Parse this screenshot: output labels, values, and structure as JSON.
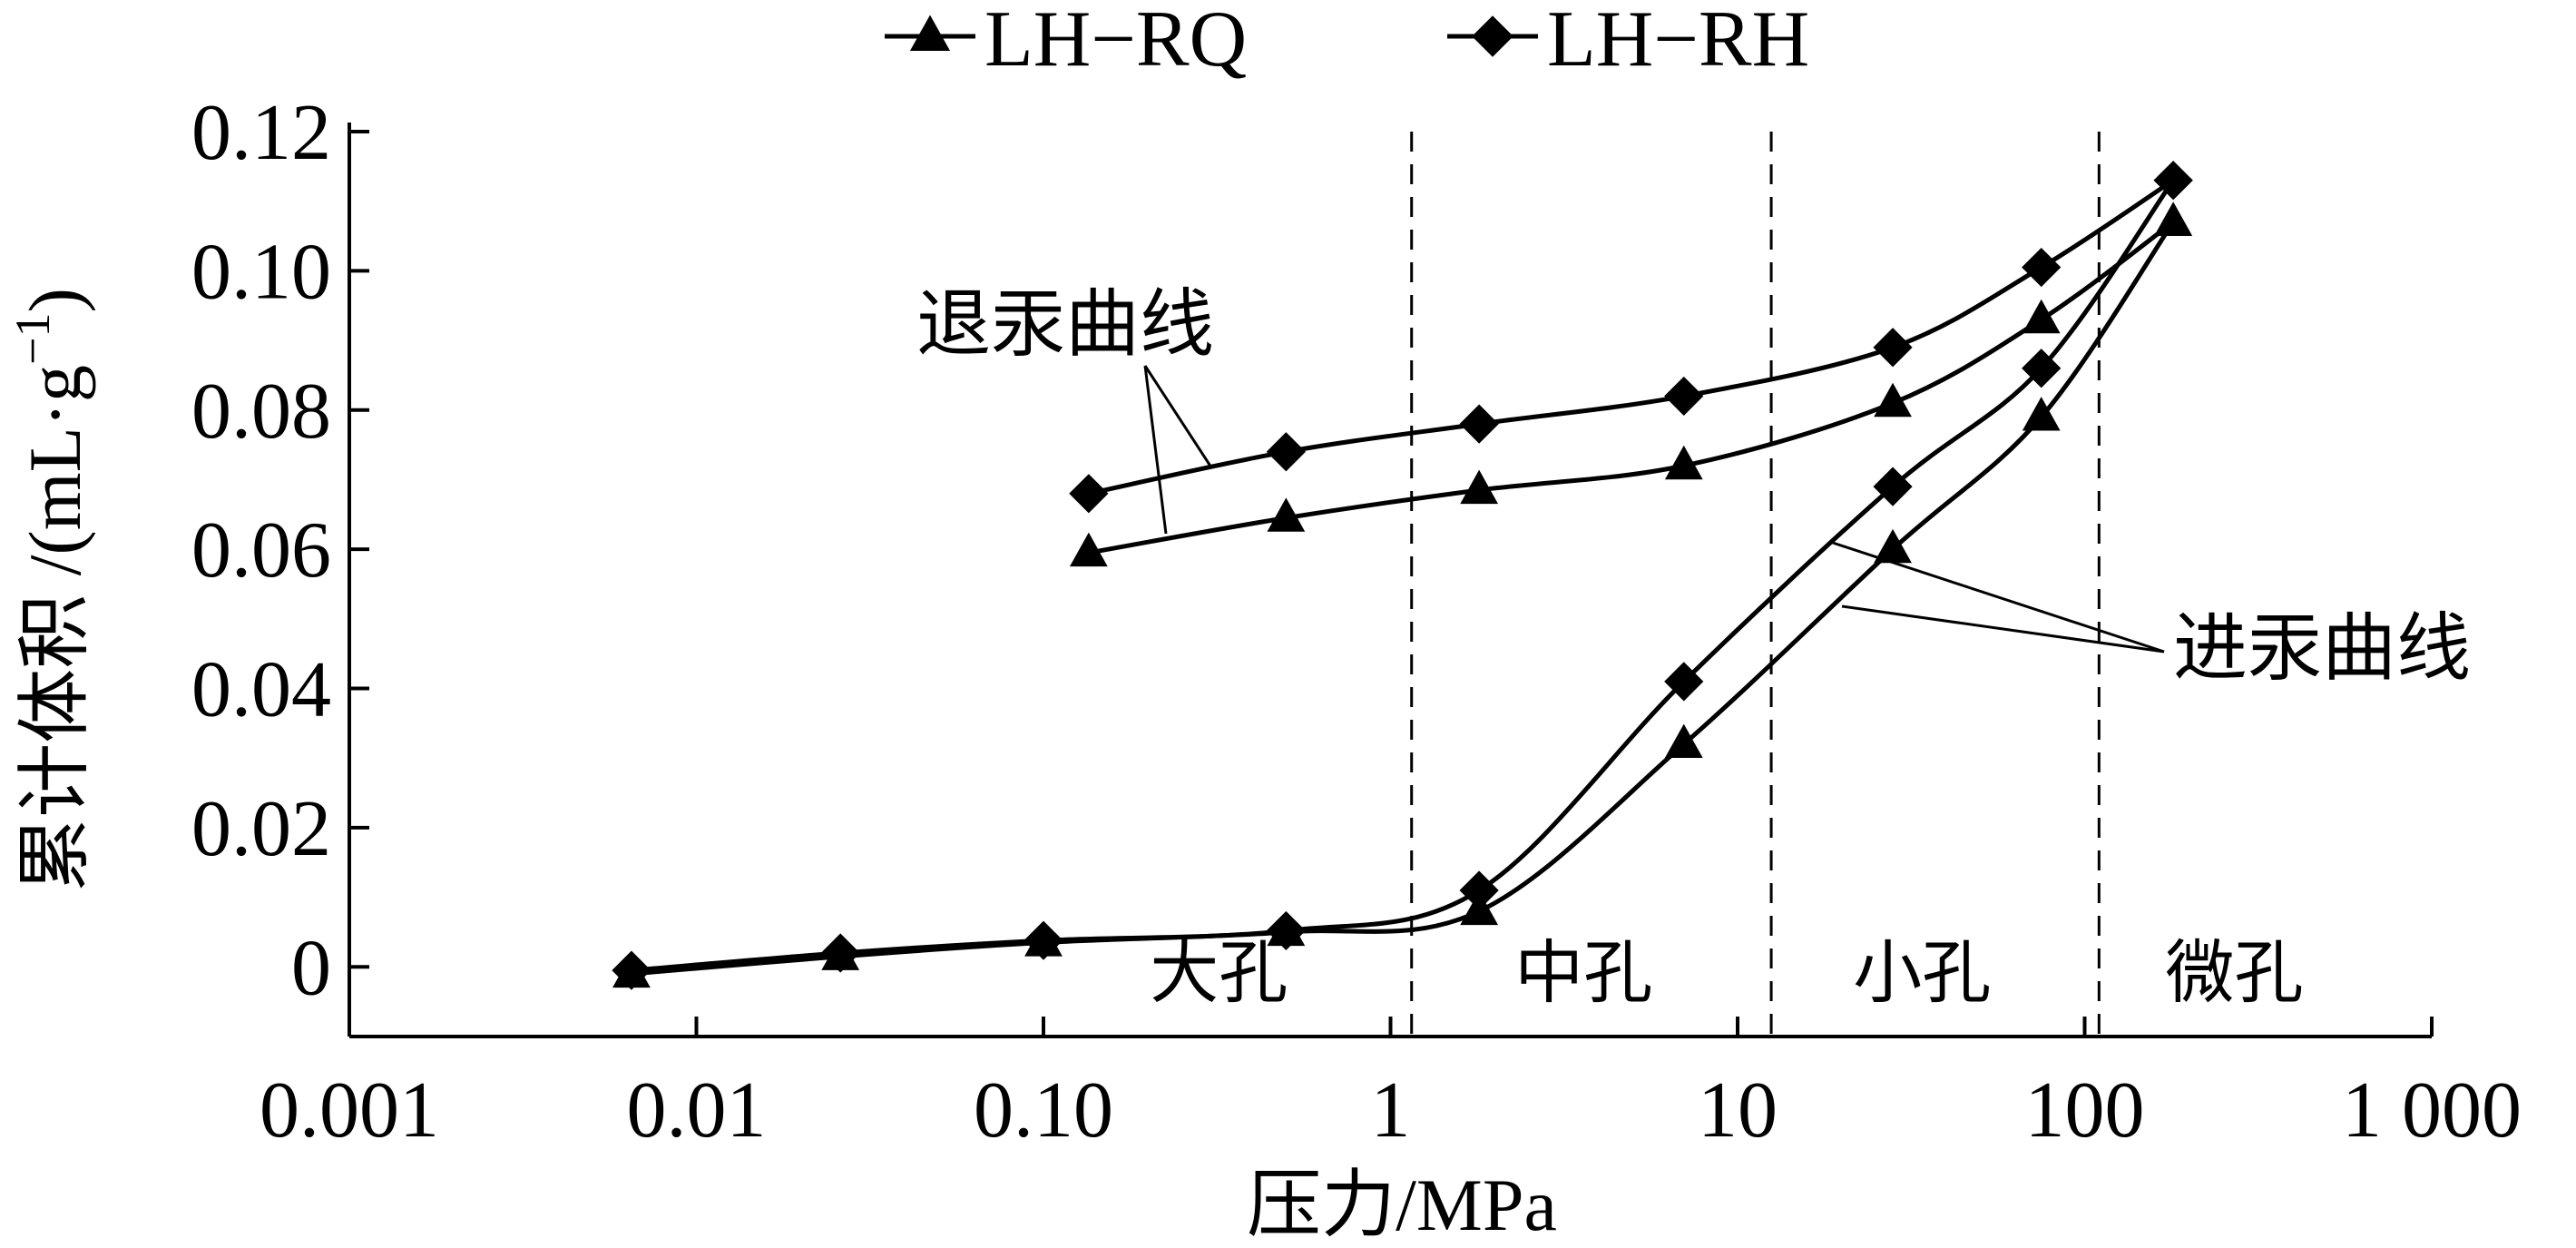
{
  "chart_data": {
    "type": "line",
    "title": "",
    "xlabel": "压力/MPa",
    "ylabel": "累计体积 /(mL·g",
    "ylabel_sup": "−1",
    "ylabel_close": ")",
    "x_scale": "log",
    "xlim": [
      0.001,
      1000
    ],
    "ylim": [
      -0.01,
      0.12
    ],
    "x_ticks": [
      {
        "value": 0.001,
        "label": "0.001"
      },
      {
        "value": 0.01,
        "label": "0.01"
      },
      {
        "value": 0.1,
        "label": "0.10"
      },
      {
        "value": 1,
        "label": "1"
      },
      {
        "value": 10,
        "label": "10"
      },
      {
        "value": 100,
        "label": "100"
      },
      {
        "value": 1000,
        "label": "1 000"
      }
    ],
    "y_ticks": [
      {
        "value": 0,
        "label": "0"
      },
      {
        "value": 0.02,
        "label": "0.02"
      },
      {
        "value": 0.04,
        "label": "0.04"
      },
      {
        "value": 0.06,
        "label": "0.06"
      },
      {
        "value": 0.08,
        "label": "0.08"
      },
      {
        "value": 0.1,
        "label": "0.10"
      },
      {
        "value": 0.12,
        "label": "0.12"
      }
    ],
    "grid": false,
    "legend_position": "top-center",
    "series": [
      {
        "name": "LH−RQ",
        "marker": "triangle",
        "color": "#000000",
        "intrusion": [
          {
            "x": 0.0065,
            "y": -0.001
          },
          {
            "x": 0.026,
            "y": 0.0015
          },
          {
            "x": 0.1,
            "y": 0.0035
          },
          {
            "x": 0.5,
            "y": 0.005
          },
          {
            "x": 1.8,
            "y": 0.008
          },
          {
            "x": 7,
            "y": 0.032
          },
          {
            "x": 28,
            "y": 0.06
          },
          {
            "x": 75,
            "y": 0.079
          },
          {
            "x": 180,
            "y": 0.107
          }
        ],
        "extrusion": [
          {
            "x": 180,
            "y": 0.107
          },
          {
            "x": 75,
            "y": 0.093
          },
          {
            "x": 28,
            "y": 0.081
          },
          {
            "x": 7,
            "y": 0.072
          },
          {
            "x": 1.8,
            "y": 0.0685
          },
          {
            "x": 0.5,
            "y": 0.0645
          },
          {
            "x": 0.135,
            "y": 0.0595
          }
        ]
      },
      {
        "name": "LH−RH",
        "marker": "diamond",
        "color": "#000000",
        "intrusion": [
          {
            "x": 0.0065,
            "y": -0.0005
          },
          {
            "x": 0.026,
            "y": 0.002
          },
          {
            "x": 0.1,
            "y": 0.0038
          },
          {
            "x": 0.5,
            "y": 0.0052
          },
          {
            "x": 1.8,
            "y": 0.011
          },
          {
            "x": 7,
            "y": 0.041
          },
          {
            "x": 28,
            "y": 0.069
          },
          {
            "x": 75,
            "y": 0.086
          },
          {
            "x": 180,
            "y": 0.113
          }
        ],
        "extrusion": [
          {
            "x": 180,
            "y": 0.113
          },
          {
            "x": 75,
            "y": 0.1005
          },
          {
            "x": 28,
            "y": 0.089
          },
          {
            "x": 7,
            "y": 0.082
          },
          {
            "x": 1.8,
            "y": 0.078
          },
          {
            "x": 0.5,
            "y": 0.074
          },
          {
            "x": 0.135,
            "y": 0.068
          }
        ]
      }
    ],
    "dividers": [
      1.15,
      12.5,
      110
    ],
    "regions": [
      {
        "label": "大孔",
        "x": 0.32
      },
      {
        "label": "中孔",
        "x": 3.6
      },
      {
        "label": "小孔",
        "x": 34
      },
      {
        "label": "微孔",
        "x": 270
      }
    ],
    "annotations": {
      "extrusion_label": "退汞曲线",
      "intrusion_label": "进汞曲线"
    }
  }
}
